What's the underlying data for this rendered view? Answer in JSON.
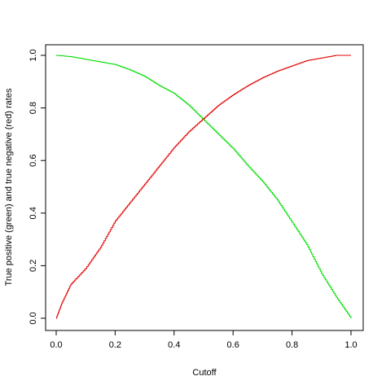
{
  "chart_data": {
    "type": "line",
    "title": "",
    "xlabel": "Cutoff",
    "ylabel": "True positive (green) and true negative (red) rates",
    "xlim": [
      0.0,
      1.0
    ],
    "ylim": [
      0.0,
      1.0
    ],
    "x_ticks": [
      "0.0",
      "0.2",
      "0.4",
      "0.6",
      "0.8",
      "1.0"
    ],
    "y_ticks": [
      "0.0",
      "0.2",
      "0.4",
      "0.6",
      "0.8",
      "1.0"
    ],
    "grid": false,
    "legend": "none",
    "series": [
      {
        "color": "#00dd00",
        "x": [
          0.0,
          0.05,
          0.1,
          0.15,
          0.2,
          0.25,
          0.3,
          0.35,
          0.4,
          0.45,
          0.5,
          0.55,
          0.6,
          0.65,
          0.7,
          0.75,
          0.8,
          0.85,
          0.9,
          0.95,
          1.0
        ],
        "y": [
          1.0,
          0.995,
          0.985,
          0.975,
          0.965,
          0.945,
          0.92,
          0.885,
          0.855,
          0.81,
          0.755,
          0.7,
          0.645,
          0.58,
          0.52,
          0.45,
          0.365,
          0.28,
          0.17,
          0.08,
          0.0
        ]
      },
      {
        "color": "#e00000",
        "x": [
          0.0,
          0.02,
          0.05,
          0.1,
          0.15,
          0.2,
          0.25,
          0.3,
          0.35,
          0.4,
          0.45,
          0.5,
          0.55,
          0.6,
          0.65,
          0.7,
          0.75,
          0.8,
          0.85,
          0.9,
          0.95,
          1.0
        ],
        "y": [
          0.0,
          0.06,
          0.13,
          0.19,
          0.27,
          0.37,
          0.44,
          0.51,
          0.58,
          0.65,
          0.71,
          0.76,
          0.81,
          0.85,
          0.885,
          0.915,
          0.94,
          0.96,
          0.98,
          0.99,
          1.0,
          1.0
        ]
      }
    ]
  }
}
